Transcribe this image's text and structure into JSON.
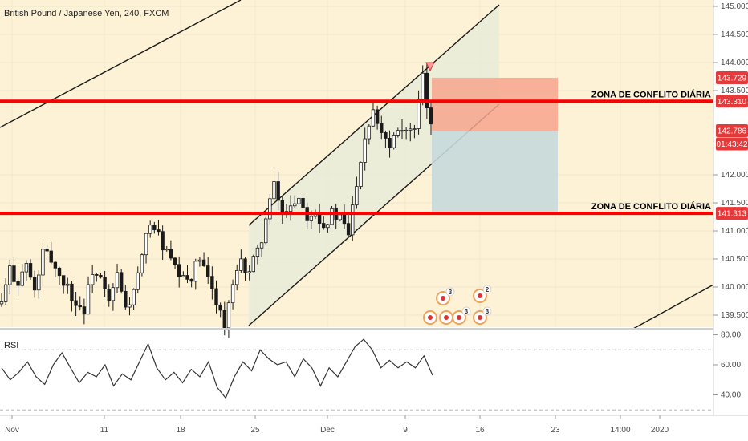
{
  "header": {
    "title": "British Pound / Japanese Yen, 240, FXCM"
  },
  "rsi": {
    "label": "RSI",
    "ticks": [
      "80.00",
      "60.00",
      "40.00"
    ],
    "levels": [
      70,
      30
    ]
  },
  "colors": {
    "background": "#fdf2d5",
    "zone_line": "#ff0000",
    "channel": "#1a1a1a",
    "candle": "#1a1a1a",
    "stop_box": "#f7a48e",
    "target_box": "#c7d9dc",
    "rsi_line": "#333333",
    "tag_red": "#e8393a",
    "tag_dark": "#3a3a3a"
  },
  "chart_data": {
    "type": "candlestick",
    "y_ticks": [
      "145.000",
      "144.500",
      "144.000",
      "143.500",
      "142.000",
      "141.500",
      "141.000",
      "140.500",
      "140.000",
      "139.500"
    ],
    "x_ticks": [
      "Nov",
      "11",
      "18",
      "25",
      "Dec",
      "9",
      "16",
      "23",
      "14:00",
      "2020"
    ],
    "zones": [
      {
        "label": "ZONA DE CONFLITO DIÁRIA",
        "value": 143.31
      },
      {
        "label": "ZONA DE CONFLITO DIÁRIA",
        "value": 141.313
      }
    ],
    "price_tags": [
      {
        "text": "143.729",
        "value": 143.729,
        "color": "#e8393a"
      },
      {
        "text": "143.310",
        "value": 143.31,
        "color": "#e8393a"
      },
      {
        "text": "142.786",
        "value": 142.786,
        "color": "#e8393a"
      },
      {
        "text": "01:43:42",
        "value": 142.55,
        "color": "#e8393a"
      },
      {
        "text": "141.313",
        "value": 141.313,
        "color": "#e8393a"
      }
    ],
    "close_path": [
      139.7,
      140.3,
      140.1,
      140.4,
      139.9,
      140.6,
      140.5,
      140.2,
      140.0,
      139.7,
      139.6,
      140.3,
      140.1,
      139.7,
      140.2,
      139.6,
      139.9,
      140.5,
      141.2,
      140.9,
      140.6,
      140.3,
      140.1,
      140.2,
      140.5,
      140.1,
      139.8,
      139.3,
      140.0,
      140.4,
      140.3,
      140.6,
      141.2,
      141.8,
      141.3,
      141.5,
      141.6,
      141.3,
      141.4,
      141.1,
      141.3,
      141.2,
      140.95,
      141.9,
      142.7,
      143.2,
      142.8,
      142.55,
      142.9,
      142.8,
      142.75,
      143.7,
      142.79
    ],
    "signals": [
      {
        "badge": "3"
      },
      {
        "badge": "2"
      },
      {
        "badge": "3"
      },
      {
        "badge": "3"
      }
    ],
    "rsi_path": [
      58,
      50,
      55,
      62,
      52,
      47,
      60,
      68,
      58,
      48,
      55,
      52,
      60,
      46,
      54,
      50,
      62,
      74,
      58,
      50,
      55,
      48,
      57,
      52,
      62,
      45,
      38,
      52,
      62,
      56,
      70,
      64,
      60,
      62,
      52,
      64,
      58,
      46,
      58,
      52,
      62,
      72,
      77,
      70,
      58,
      63,
      58,
      62,
      58,
      66,
      53
    ]
  }
}
